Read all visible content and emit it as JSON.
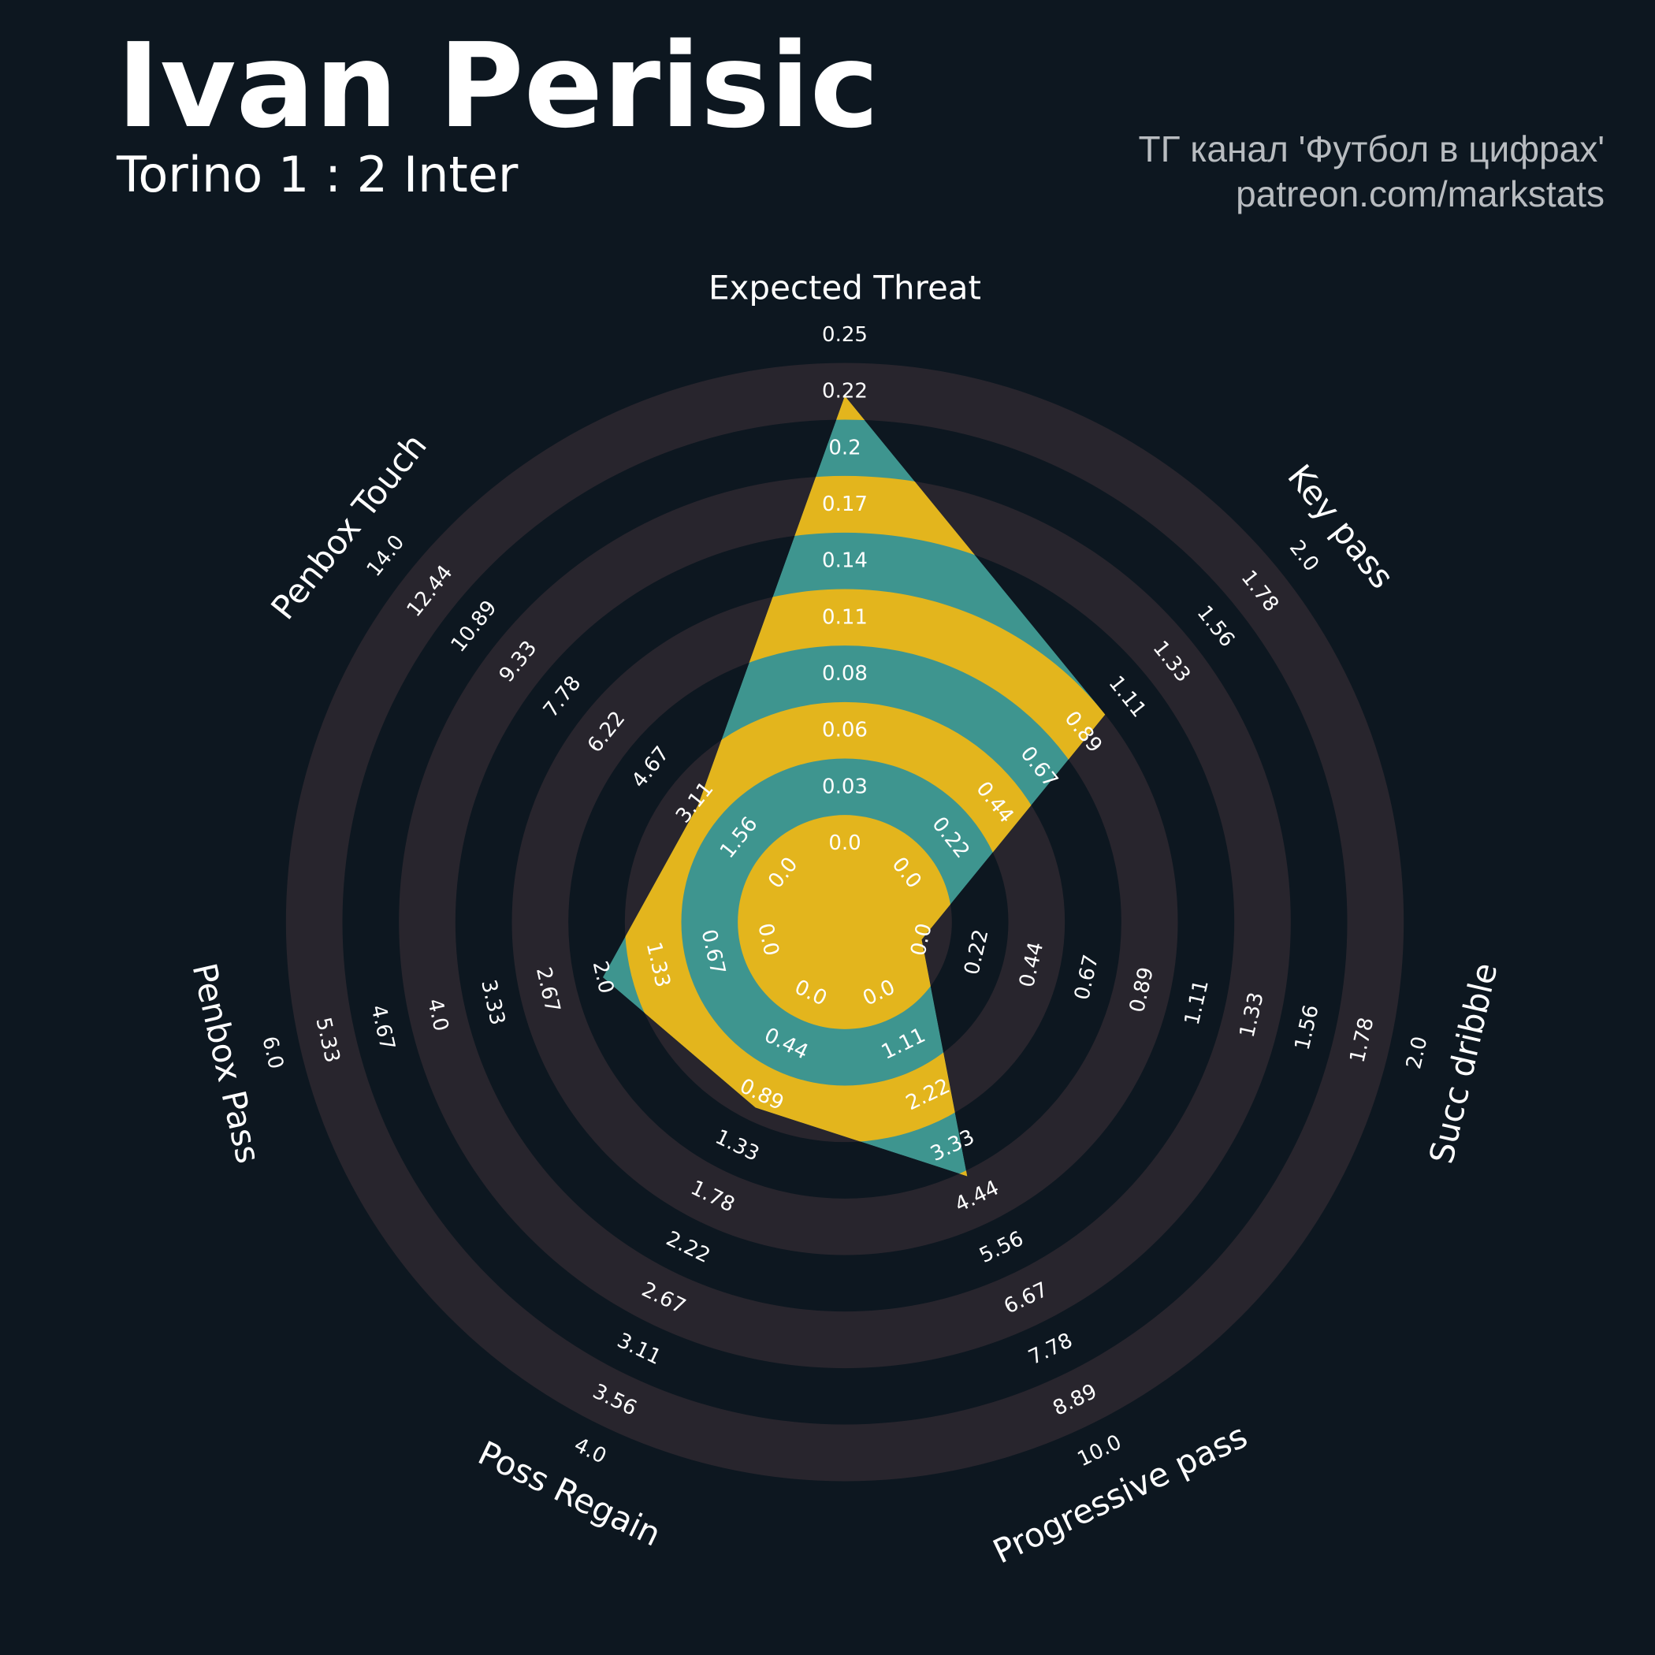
{
  "header": {
    "title": "Ivan Perisic",
    "subtitle": "Torino 1 : 2 Inter",
    "credit_line1": "ТГ канал 'Футбол в цифрах'",
    "credit_line2": "patreon.com/markstats"
  },
  "colors": {
    "background": "#0d1720",
    "ring": "#28252d",
    "fill_teal": "#3e958f",
    "fill_gold": "#e3b51d",
    "text": "#ffffff",
    "credit": "#b8bcc0"
  },
  "chart_data": {
    "type": "radar",
    "axes": [
      {
        "name": "Expected Threat",
        "min": 0,
        "max": 0.25,
        "value": 0.22,
        "ticks": [
          "0.0",
          "0.03",
          "0.06",
          "0.08",
          "0.11",
          "0.14",
          "0.17",
          "0.2",
          "0.22",
          "0.25"
        ]
      },
      {
        "name": "Key pass",
        "min": 0,
        "max": 2.0,
        "value": 1.0,
        "ticks": [
          "0.0",
          "0.22",
          "0.44",
          "0.67",
          "0.89",
          "1.11",
          "1.33",
          "1.56",
          "1.78",
          "2.0"
        ]
      },
      {
        "name": "Succ dribble",
        "min": 0,
        "max": 2.0,
        "value": 0.0,
        "ticks": [
          "0.0",
          "0.22",
          "0.44",
          "0.67",
          "0.89",
          "1.11",
          "1.33",
          "1.56",
          "1.78",
          "2.0"
        ]
      },
      {
        "name": "Progressive pass",
        "min": 0,
        "max": 10.0,
        "value": 4.0,
        "ticks": [
          "0.0",
          "1.11",
          "2.22",
          "3.33",
          "4.44",
          "5.56",
          "6.67",
          "7.78",
          "8.89",
          "10.0"
        ]
      },
      {
        "name": "Poss Regain",
        "min": 0,
        "max": 4.0,
        "value": 1.0,
        "ticks": [
          "0.0",
          "0.44",
          "0.89",
          "1.33",
          "1.78",
          "2.22",
          "2.67",
          "3.11",
          "3.56",
          "4.0"
        ]
      },
      {
        "name": "Penbox Pass",
        "min": 0,
        "max": 6.0,
        "value": 2.0,
        "ticks": [
          "0.0",
          "0.67",
          "1.33",
          "2.0",
          "2.67",
          "3.33",
          "4.0",
          "4.67",
          "5.33",
          "6.0"
        ]
      },
      {
        "name": "Penbox Touch",
        "min": 0,
        "max": 14.0,
        "value": 3.0,
        "ticks": [
          "0.0",
          "1.56",
          "3.11",
          "4.67",
          "6.22",
          "7.78",
          "9.33",
          "10.89",
          "12.44",
          "14.0"
        ]
      }
    ]
  }
}
